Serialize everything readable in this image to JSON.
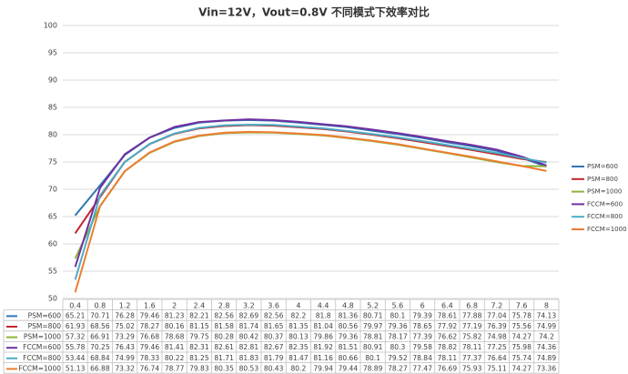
{
  "chart_data": {
    "type": "line",
    "title": "Vin=12V，Vout=0.8V 不同模式下效率对比",
    "categories": [
      "0.4",
      "0.8",
      "1.2",
      "1.6",
      "2",
      "2.4",
      "2.8",
      "3.2",
      "3.6",
      "4",
      "4.4",
      "4.8",
      "5.2",
      "5.6",
      "6",
      "6.4",
      "6.8",
      "7.2",
      "7.6",
      "8"
    ],
    "series": [
      {
        "name": "PSM=600",
        "color": "#2e75b6",
        "values": [
          65.21,
          70.71,
          76.28,
          79.46,
          81.23,
          82.21,
          82.56,
          82.69,
          82.56,
          82.2,
          81.8,
          81.36,
          80.71,
          80.1,
          79.39,
          78.61,
          77.88,
          77.04,
          75.78,
          74.13
        ]
      },
      {
        "name": "PSM=800",
        "color": "#c0262d",
        "values": [
          61.93,
          68.56,
          75.02,
          78.27,
          80.16,
          81.15,
          81.58,
          81.74,
          81.65,
          81.35,
          81.04,
          80.56,
          79.97,
          79.36,
          78.65,
          77.92,
          77.19,
          76.39,
          75.56,
          74.99
        ]
      },
      {
        "name": "PSM=1000",
        "color": "#8fb43a",
        "values": [
          57.32,
          66.91,
          73.29,
          76.68,
          78.68,
          79.75,
          80.28,
          80.42,
          80.37,
          80.13,
          79.86,
          79.36,
          78.81,
          78.17,
          77.39,
          76.62,
          75.82,
          74.98,
          74.27,
          74.2
        ]
      },
      {
        "name": "FCCM=600",
        "color": "#7030a0",
        "values": [
          55.78,
          70.25,
          76.43,
          79.46,
          81.41,
          82.31,
          82.61,
          82.81,
          82.67,
          82.35,
          81.92,
          81.51,
          80.91,
          80.3,
          79.58,
          78.82,
          78.11,
          77.25,
          75.98,
          74.36
        ]
      },
      {
        "name": "FCCM=800",
        "color": "#4bacc6",
        "values": [
          53.44,
          68.84,
          74.99,
          78.33,
          80.22,
          81.25,
          81.71,
          81.83,
          81.79,
          81.47,
          81.16,
          80.66,
          80.1,
          79.52,
          78.84,
          78.11,
          77.37,
          76.64,
          75.74,
          74.89
        ]
      },
      {
        "name": "FCCM=1000",
        "color": "#ed7d31",
        "values": [
          51.13,
          66.88,
          73.32,
          76.74,
          78.77,
          79.83,
          80.35,
          80.53,
          80.43,
          80.2,
          79.94,
          79.44,
          78.89,
          78.27,
          77.47,
          76.69,
          75.93,
          75.11,
          74.27,
          73.36
        ]
      }
    ],
    "ylim": [
      50,
      100
    ],
    "yticks": [
      50,
      55,
      60,
      65,
      70,
      75,
      80,
      85,
      90,
      95,
      100
    ],
    "grid": true,
    "legend": "right"
  }
}
